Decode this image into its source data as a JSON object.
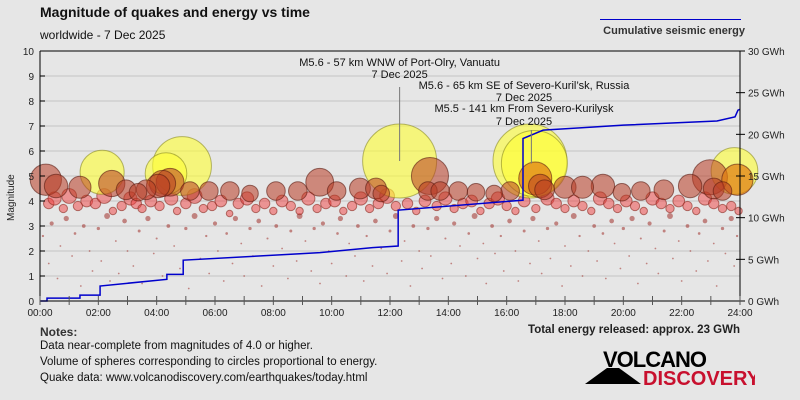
{
  "header": {
    "title": "Magnitude of quakes and energy vs time",
    "subtitle": "worldwide -  7 Dec 2025",
    "legend_label": "Cumulative seismic energy"
  },
  "footer": {
    "notes_title": "Notes:",
    "notes": [
      "Data near-complete from magnitudes of 4.0 or higher.",
      "Volume of spheres corresponding to circles proportional to energy.",
      "Quake data: www.volcanodiscovery.com/earthquakes/today.html"
    ],
    "total": "Total energy released: approx. 23 GWh",
    "logo_top": "VOLCANO",
    "logo_bottom": "DISCOVERY"
  },
  "colors": {
    "energy": "#0000cc",
    "big": "#ffff33",
    "recent": "#e07a10",
    "medium": "#b83a22",
    "small": "#f04040",
    "dot": "#a0302a",
    "logo_red": "#c8102e"
  },
  "chart_data": {
    "type": "scatter",
    "title": "Magnitude of quakes and energy vs time",
    "xlabel": "",
    "ylabel": "Magnitude",
    "y2label": "Cumulative seismic energy",
    "xlim": [
      0,
      24
    ],
    "ylim": [
      0,
      10
    ],
    "y2lim": [
      0,
      30
    ],
    "x_ticks": [
      "00:00",
      "02:00",
      "04:00",
      "06:00",
      "08:00",
      "10:00",
      "12:00",
      "14:00",
      "16:00",
      "18:00",
      "20:00",
      "22:00",
      "24:00"
    ],
    "y_ticks": [
      "0",
      "1",
      "2",
      "3",
      "4",
      "5",
      "6",
      "7",
      "8",
      "9",
      "10"
    ],
    "y2_ticks": [
      "0 GWh",
      "5 GWh",
      "10 GWh",
      "15 GWh",
      "20 GWh",
      "25 GWh",
      "30 GWh"
    ],
    "grid": true,
    "annotations": [
      {
        "text": "M5.6 - 57 km WNW of Port-Olry, Vanuatu",
        "date": "7 Dec 2025",
        "time": 12.33,
        "mag": 5.6
      },
      {
        "text": "M5.6 - 65 km SE of Severo-Kuril’sk, Russia",
        "date": "7 Dec 2025",
        "time": 16.8,
        "mag": 5.6
      },
      {
        "text": "M5.5 - 141 km From Severo-Kurilysk",
        "date": "7 Dec 2025",
        "time": 16.95,
        "mag": 5.5
      }
    ],
    "energy_series": {
      "name": "Cumulative seismic energy",
      "unit": "GWh",
      "points": [
        [
          0,
          0
        ],
        [
          0.24,
          0
        ],
        [
          0.24,
          0.35
        ],
        [
          1.37,
          0.35
        ],
        [
          1.37,
          0.7
        ],
        [
          2.06,
          0.7
        ],
        [
          2.06,
          1.8
        ],
        [
          4.35,
          2.6
        ],
        [
          4.35,
          3.2
        ],
        [
          4.91,
          3.2
        ],
        [
          4.91,
          4.9
        ],
        [
          9.6,
          5.8
        ],
        [
          11.4,
          6.4
        ],
        [
          12.28,
          6.6
        ],
        [
          12.28,
          10.9
        ],
        [
          16.56,
          12.1
        ],
        [
          16.56,
          19.5
        ],
        [
          17.25,
          20.5
        ],
        [
          20.0,
          21.1
        ],
        [
          23.21,
          21.6
        ],
        [
          23.83,
          22.1
        ],
        [
          23.93,
          22.9
        ],
        [
          24,
          23
        ]
      ]
    },
    "quakes_large": [
      [
        0.2,
        4.85
      ],
      [
        0.55,
        4.6
      ],
      [
        1.37,
        4.55
      ],
      [
        2.13,
        5.15
      ],
      [
        2.46,
        4.7
      ],
      [
        2.95,
        4.45
      ],
      [
        3.36,
        4.35
      ],
      [
        3.64,
        4.45
      ],
      [
        4.05,
        4.6
      ],
      [
        4.2,
        4.7
      ],
      [
        4.32,
        5.1
      ],
      [
        4.46,
        4.75
      ],
      [
        4.87,
        5.4
      ],
      [
        5.14,
        4.4
      ],
      [
        5.79,
        4.4
      ],
      [
        6.51,
        4.4
      ],
      [
        7.2,
        4.3
      ],
      [
        8.09,
        4.4
      ],
      [
        8.84,
        4.4
      ],
      [
        9.59,
        4.75
      ],
      [
        10.17,
        4.4
      ],
      [
        10.97,
        4.5
      ],
      [
        11.52,
        4.5
      ],
      [
        12.33,
        5.6
      ],
      [
        11.7,
        4.3
      ],
      [
        13.3,
        4.4
      ],
      [
        13.37,
        5.0
      ],
      [
        13.72,
        4.4
      ],
      [
        14.34,
        4.4
      ],
      [
        14.95,
        4.35
      ],
      [
        15.57,
        4.3
      ],
      [
        16.12,
        4.4
      ],
      [
        16.8,
        5.6
      ],
      [
        16.95,
        5.5
      ],
      [
        16.98,
        4.9
      ],
      [
        17.15,
        4.6
      ],
      [
        17.3,
        4.45
      ],
      [
        18.0,
        4.55
      ],
      [
        18.6,
        4.55
      ],
      [
        19.3,
        4.6
      ],
      [
        19.95,
        4.35
      ],
      [
        20.6,
        4.4
      ],
      [
        21.39,
        4.45
      ],
      [
        22.29,
        4.6
      ],
      [
        22.97,
        4.95
      ],
      [
        23.1,
        4.5
      ],
      [
        23.4,
        4.4
      ],
      [
        23.81,
        5.2
      ],
      [
        23.91,
        4.85
      ]
    ],
    "quakes_medium": [
      [
        0.3,
        3.9
      ],
      [
        0.5,
        4.1
      ],
      [
        0.8,
        3.7
      ],
      [
        1.0,
        4.2
      ],
      [
        1.3,
        3.8
      ],
      [
        1.6,
        4.0
      ],
      [
        1.9,
        3.9
      ],
      [
        2.2,
        4.2
      ],
      [
        2.5,
        3.6
      ],
      [
        2.8,
        3.8
      ],
      [
        3.1,
        4.1
      ],
      [
        3.3,
        3.9
      ],
      [
        3.5,
        3.7
      ],
      [
        3.8,
        4.0
      ],
      [
        4.1,
        3.8
      ],
      [
        4.5,
        4.1
      ],
      [
        4.7,
        3.6
      ],
      [
        5.0,
        3.9
      ],
      [
        5.3,
        4.2
      ],
      [
        5.6,
        3.7
      ],
      [
        5.9,
        3.8
      ],
      [
        6.2,
        4.0
      ],
      [
        6.5,
        3.5
      ],
      [
        6.8,
        3.9
      ],
      [
        7.1,
        4.1
      ],
      [
        7.4,
        3.7
      ],
      [
        7.7,
        3.9
      ],
      [
        8.0,
        3.6
      ],
      [
        8.3,
        4.0
      ],
      [
        8.6,
        3.8
      ],
      [
        8.9,
        3.6
      ],
      [
        9.2,
        4.1
      ],
      [
        9.5,
        3.7
      ],
      [
        9.8,
        3.9
      ],
      [
        10.1,
        4.0
      ],
      [
        10.4,
        3.6
      ],
      [
        10.7,
        3.8
      ],
      [
        11.0,
        4.1
      ],
      [
        11.3,
        3.7
      ],
      [
        11.6,
        3.9
      ],
      [
        11.9,
        4.2
      ],
      [
        12.2,
        3.8
      ],
      [
        12.6,
        3.9
      ],
      [
        12.9,
        3.6
      ],
      [
        13.2,
        4.0
      ],
      [
        13.6,
        3.8
      ],
      [
        13.9,
        4.1
      ],
      [
        14.2,
        3.7
      ],
      [
        14.5,
        3.9
      ],
      [
        14.8,
        4.0
      ],
      [
        15.1,
        3.6
      ],
      [
        15.4,
        3.9
      ],
      [
        15.7,
        4.1
      ],
      [
        16.0,
        3.8
      ],
      [
        16.3,
        3.6
      ],
      [
        16.6,
        4.0
      ],
      [
        17.0,
        3.7
      ],
      [
        17.4,
        4.1
      ],
      [
        17.7,
        3.9
      ],
      [
        18.0,
        3.7
      ],
      [
        18.3,
        4.0
      ],
      [
        18.6,
        3.8
      ],
      [
        18.9,
        3.6
      ],
      [
        19.2,
        4.1
      ],
      [
        19.5,
        3.9
      ],
      [
        19.8,
        3.7
      ],
      [
        20.1,
        4.0
      ],
      [
        20.4,
        3.8
      ],
      [
        20.7,
        3.6
      ],
      [
        21.0,
        4.1
      ],
      [
        21.3,
        3.9
      ],
      [
        21.6,
        3.7
      ],
      [
        21.9,
        4.0
      ],
      [
        22.2,
        3.8
      ],
      [
        22.5,
        3.6
      ],
      [
        22.8,
        4.1
      ],
      [
        23.1,
        3.9
      ],
      [
        23.4,
        3.7
      ],
      [
        23.7,
        3.8
      ],
      [
        23.95,
        3.6
      ]
    ],
    "quakes_small": [
      [
        0.1,
        2.6
      ],
      [
        0.3,
        1.5
      ],
      [
        0.4,
        3.1
      ],
      [
        0.6,
        0.9
      ],
      [
        0.7,
        2.2
      ],
      [
        0.9,
        3.3
      ],
      [
        1.1,
        1.8
      ],
      [
        1.2,
        2.7
      ],
      [
        1.4,
        0.6
      ],
      [
        1.5,
        3.0
      ],
      [
        1.7,
        2.0
      ],
      [
        1.8,
        1.2
      ],
      [
        2.0,
        2.9
      ],
      [
        2.1,
        1.6
      ],
      [
        2.3,
        3.4
      ],
      [
        2.4,
        0.8
      ],
      [
        2.6,
        2.4
      ],
      [
        2.7,
        1.1
      ],
      [
        2.9,
        3.2
      ],
      [
        3.0,
        2.0
      ],
      [
        3.2,
        1.4
      ],
      [
        3.4,
        2.8
      ],
      [
        3.5,
        0.7
      ],
      [
        3.7,
        3.3
      ],
      [
        3.9,
        1.9
      ],
      [
        4.0,
        2.5
      ],
      [
        4.2,
        1.0
      ],
      [
        4.4,
        3.0
      ],
      [
        4.6,
        2.2
      ],
      [
        4.8,
        1.3
      ],
      [
        5.0,
        2.9
      ],
      [
        5.1,
        0.5
      ],
      [
        5.3,
        3.4
      ],
      [
        5.5,
        1.7
      ],
      [
        5.7,
        2.6
      ],
      [
        5.8,
        1.1
      ],
      [
        6.0,
        3.1
      ],
      [
        6.1,
        2.0
      ],
      [
        6.3,
        0.8
      ],
      [
        6.4,
        2.7
      ],
      [
        6.6,
        1.5
      ],
      [
        6.7,
        3.3
      ],
      [
        6.9,
        2.3
      ],
      [
        7.0,
        1.0
      ],
      [
        7.2,
        2.9
      ],
      [
        7.3,
        1.8
      ],
      [
        7.5,
        3.2
      ],
      [
        7.6,
        0.6
      ],
      [
        7.8,
        2.5
      ],
      [
        8.0,
        1.4
      ],
      [
        8.1,
        3.0
      ],
      [
        8.3,
        2.1
      ],
      [
        8.5,
        0.9
      ],
      [
        8.6,
        2.8
      ],
      [
        8.8,
        1.6
      ],
      [
        8.9,
        3.4
      ],
      [
        9.1,
        2.4
      ],
      [
        9.3,
        1.2
      ],
      [
        9.4,
        2.9
      ],
      [
        9.6,
        0.7
      ],
      [
        9.7,
        3.1
      ],
      [
        9.9,
        2.0
      ],
      [
        10.0,
        1.5
      ],
      [
        10.2,
        2.7
      ],
      [
        10.3,
        3.3
      ],
      [
        10.5,
        1.0
      ],
      [
        10.6,
        2.3
      ],
      [
        10.8,
        1.8
      ],
      [
        10.9,
        3.0
      ],
      [
        11.1,
        0.8
      ],
      [
        11.2,
        2.6
      ],
      [
        11.4,
        1.4
      ],
      [
        11.5,
        3.2
      ],
      [
        11.7,
        2.1
      ],
      [
        11.9,
        1.1
      ],
      [
        12.0,
        2.8
      ],
      [
        12.2,
        3.4
      ],
      [
        12.4,
        1.6
      ],
      [
        12.5,
        2.4
      ],
      [
        12.7,
        0.6
      ],
      [
        12.8,
        3.0
      ],
      [
        13.0,
        2.0
      ],
      [
        13.1,
        1.3
      ],
      [
        13.3,
        2.9
      ],
      [
        13.4,
        1.8
      ],
      [
        13.6,
        3.3
      ],
      [
        13.8,
        0.9
      ],
      [
        13.9,
        2.5
      ],
      [
        14.1,
        1.5
      ],
      [
        14.2,
        3.1
      ],
      [
        14.4,
        2.2
      ],
      [
        14.6,
        1.0
      ],
      [
        14.7,
        2.7
      ],
      [
        14.9,
        3.4
      ],
      [
        15.0,
        1.7
      ],
      [
        15.2,
        2.3
      ],
      [
        15.3,
        0.7
      ],
      [
        15.5,
        3.0
      ],
      [
        15.6,
        1.9
      ],
      [
        15.8,
        2.6
      ],
      [
        15.9,
        1.2
      ],
      [
        16.1,
        3.2
      ],
      [
        16.3,
        2.0
      ],
      [
        16.4,
        0.8
      ],
      [
        16.6,
        2.8
      ],
      [
        16.8,
        1.5
      ],
      [
        16.9,
        3.3
      ],
      [
        17.1,
        2.4
      ],
      [
        17.2,
        1.1
      ],
      [
        17.4,
        2.9
      ],
      [
        17.5,
        1.7
      ],
      [
        17.7,
        3.1
      ],
      [
        17.9,
        0.6
      ],
      [
        18.0,
        2.2
      ],
      [
        18.2,
        1.4
      ],
      [
        18.3,
        3.4
      ],
      [
        18.5,
        2.6
      ],
      [
        18.6,
        1.0
      ],
      [
        18.8,
        2.0
      ],
      [
        19.0,
        3.0
      ],
      [
        19.1,
        1.6
      ],
      [
        19.3,
        2.7
      ],
      [
        19.4,
        0.9
      ],
      [
        19.6,
        3.2
      ],
      [
        19.7,
        2.3
      ],
      [
        19.9,
        1.3
      ],
      [
        20.0,
        2.9
      ],
      [
        20.2,
        1.8
      ],
      [
        20.3,
        3.3
      ],
      [
        20.5,
        0.7
      ],
      [
        20.6,
        2.5
      ],
      [
        20.8,
        1.5
      ],
      [
        20.9,
        3.1
      ],
      [
        21.1,
        2.1
      ],
      [
        21.2,
        1.1
      ],
      [
        21.4,
        2.8
      ],
      [
        21.6,
        3.4
      ],
      [
        21.7,
        1.7
      ],
      [
        21.9,
        2.4
      ],
      [
        22.0,
        0.8
      ],
      [
        22.2,
        3.0
      ],
      [
        22.3,
        2.0
      ],
      [
        22.5,
        1.2
      ],
      [
        22.6,
        2.7
      ],
      [
        22.8,
        3.2
      ],
      [
        22.9,
        1.6
      ],
      [
        23.1,
        2.3
      ],
      [
        23.2,
        0.6
      ],
      [
        23.4,
        2.9
      ],
      [
        23.5,
        1.9
      ],
      [
        23.7,
        3.3
      ],
      [
        23.8,
        1.4
      ],
      [
        23.9,
        2.6
      ]
    ]
  }
}
